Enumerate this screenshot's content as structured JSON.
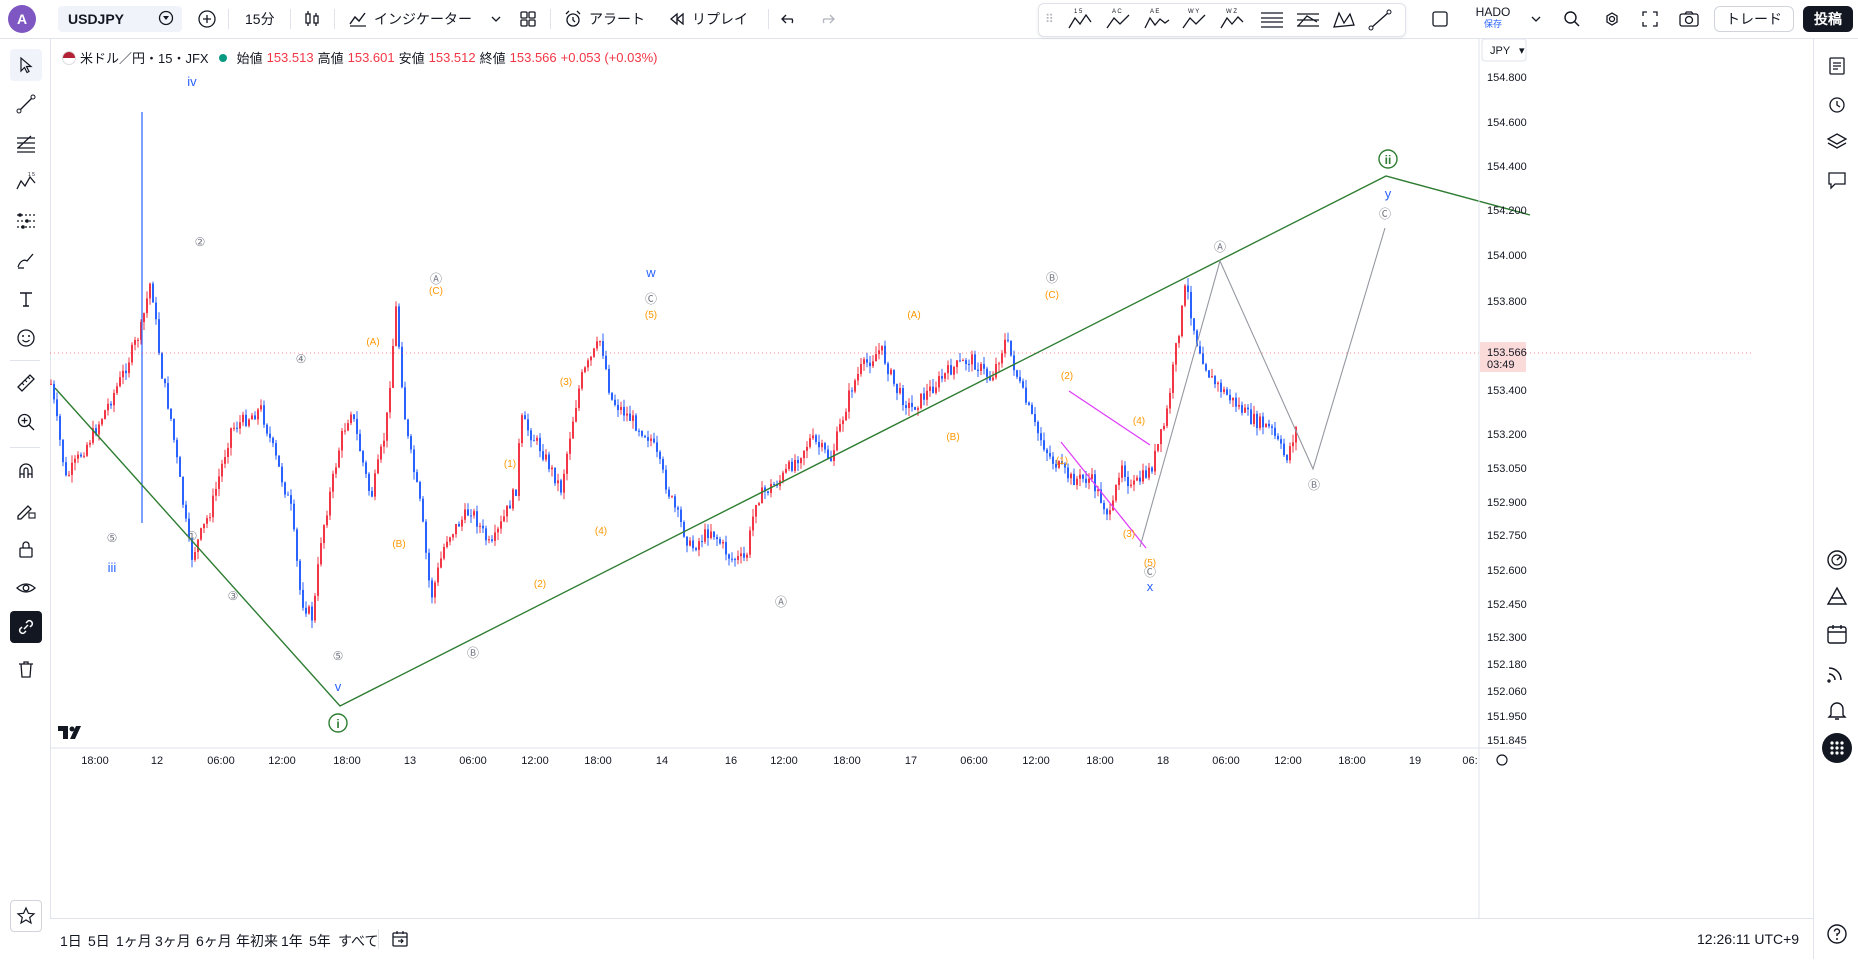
{
  "toolbar": {
    "avatar_letter": "A",
    "symbol": "USDJPY",
    "interval": "15分",
    "indicators_label": "インジケーター",
    "alert_label": "アラート",
    "replay_label": "リプレイ",
    "elliott_tools": [
      "1 5",
      "A C",
      "A E",
      "W Y",
      "W Z"
    ],
    "layout_name": "HADO",
    "layout_status": "保存",
    "trade_label": "トレード",
    "publish_label": "投稿"
  },
  "legend": {
    "title": "米ドル／円・15・JFX",
    "open_label": "始値",
    "open": "153.513",
    "high_label": "高値",
    "high": "153.601",
    "low_label": "安値",
    "low": "153.512",
    "close_label": "終値",
    "close": "153.566",
    "change": "+0.053 (+0.03%)"
  },
  "price_axis": {
    "currency": "JPY",
    "ticks": [
      "154.800",
      "154.600",
      "154.400",
      "154.200",
      "154.000",
      "153.800",
      "153.400",
      "153.200",
      "153.050",
      "152.900",
      "152.750",
      "152.600",
      "152.450",
      "152.300",
      "152.180",
      "152.060",
      "151.950",
      "151.845"
    ],
    "current_price": "153.566",
    "countdown": "03:49"
  },
  "time_axis": [
    "18:00",
    "12",
    "06:00",
    "12:00",
    "18:00",
    "13",
    "06:00",
    "12:00",
    "18:00",
    "14",
    "16",
    "12:00",
    "18:00",
    "17",
    "06:00",
    "12:00",
    "18:00",
    "18",
    "06:00",
    "12:00",
    "18:00",
    "19",
    "06:"
  ],
  "bottom": {
    "ranges": [
      "1日",
      "5日",
      "1ヶ月",
      "3ヶ月",
      "6ヶ月",
      "年初来",
      "1年",
      "5年",
      "すべて"
    ],
    "clock": "12:26:11 UTC+9"
  },
  "waves": {
    "blue": [
      "iv",
      "iii",
      "v",
      "w",
      "x",
      "y"
    ],
    "green": [
      "i",
      "ii"
    ],
    "gray": [
      "⑤",
      "①",
      "②",
      "③",
      "④",
      "⑤",
      "Ⓐ",
      "Ⓑ",
      "Ⓒ",
      "Ⓐ",
      "Ⓑ",
      "Ⓒ",
      "Ⓐ",
      "Ⓑ",
      "Ⓒ"
    ],
    "orange": [
      "(C)",
      "(A)",
      "(B)",
      "(1)",
      "(2)",
      "(3)",
      "(4)",
      "(5)",
      "(A)",
      "(B)",
      "(C)",
      "(1)",
      "(2)",
      "(3)",
      "(4)",
      "(5)"
    ]
  },
  "colors": {
    "up": "#f23645",
    "down": "#2962ff",
    "wave_green": "#2e7d32",
    "wave_orange": "#ff9800",
    "wave_blue": "#2962ff",
    "triangle": "#e040fb",
    "gray": "#9598a1"
  },
  "watermark": "TV"
}
